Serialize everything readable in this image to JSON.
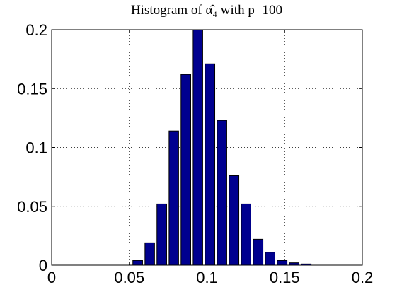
{
  "chart_data": {
    "type": "histogram",
    "title": "Histogram of α̂₄ with p=100",
    "bins": [
      0.0515,
      0.0593,
      0.067,
      0.0748,
      0.0825,
      0.0903,
      0.098,
      0.1058,
      0.1135,
      0.1213,
      0.129,
      0.1368,
      0.1445,
      0.1523,
      0.16,
      0.1678
    ],
    "values": [
      0.004,
      0.019,
      0.052,
      0.114,
      0.162,
      0.2,
      0.171,
      0.123,
      0.076,
      0.052,
      0.022,
      0.011,
      0.004,
      0.002,
      0.001
    ],
    "color": "#00008f",
    "xlim": [
      0,
      0.2
    ],
    "xticks": [
      0,
      0.05,
      0.1,
      0.15,
      0.2
    ],
    "ylim": [
      0,
      0.2
    ],
    "yticks": [
      0,
      0.05,
      0.1,
      0.15,
      0.2
    ],
    "grid": true
  }
}
